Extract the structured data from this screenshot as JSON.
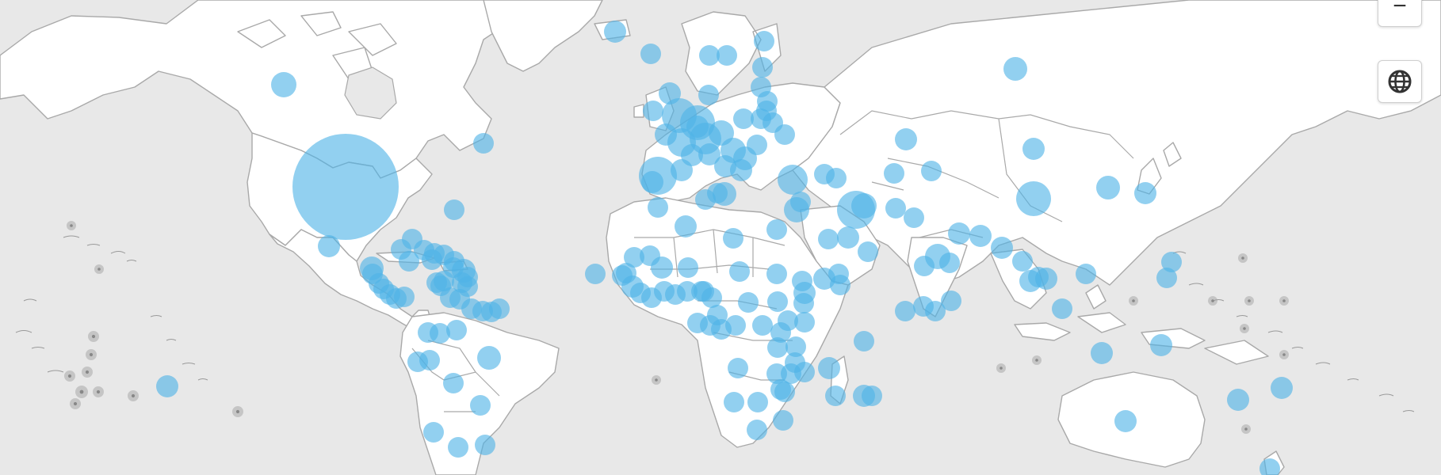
{
  "map": {
    "bubble_color": "#4fb3e6",
    "dim_bubble_color": "#9b9b9b",
    "ocean_color": "#e8e8e8",
    "land_color": "#ffffff",
    "border_color": "#a9a9a9"
  },
  "controls": {
    "zoom_out_label": "−",
    "globe_icon": "globe-icon"
  }
}
